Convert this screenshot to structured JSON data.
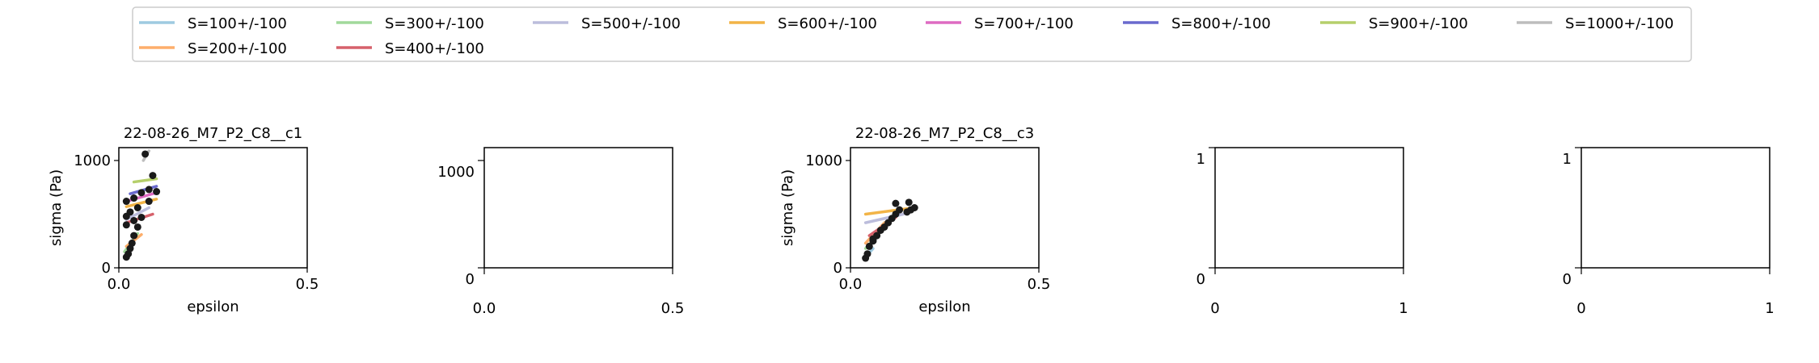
{
  "legend": {
    "placement": "top-center",
    "entries": [
      {
        "label": "S=100+/-100",
        "color": "#9ecae1"
      },
      {
        "label": "S=300+/-100",
        "color": "#a1d99b"
      },
      {
        "label": "S=500+/-100",
        "color": "#bcbddc"
      },
      {
        "label": "S=600+/-100",
        "color": "#f2b447"
      },
      {
        "label": "S=700+/-100",
        "color": "#de6bc2"
      },
      {
        "label": "S=800+/-100",
        "color": "#6a6acd"
      },
      {
        "label": "S=900+/-100",
        "color": "#b5cf6b"
      },
      {
        "label": "S=1000+/-100",
        "color": "#bdbdbd"
      },
      {
        "label": "S=200+/-100",
        "color": "#fdae6b"
      },
      {
        "label": "S=400+/-100",
        "color": "#d6616b"
      }
    ]
  },
  "chart_data": [
    {
      "type": "scatter",
      "title": "22-08-26_M7_P2_C8__c1",
      "xlabel": "epsilon",
      "ylabel": "sigma (Pa)",
      "xlim": [
        0,
        0.5
      ],
      "ylim": [
        0,
        1120
      ],
      "xticks": [
        {
          "v": 0,
          "label": "0.0"
        },
        {
          "v": 0.5,
          "label": "0.5"
        }
      ],
      "yticks": [
        {
          "v": 0,
          "label": "0"
        },
        {
          "v": 1000,
          "label": "1000"
        }
      ],
      "points": [
        [
          0.02,
          100
        ],
        [
          0.025,
          130
        ],
        [
          0.03,
          180
        ],
        [
          0.035,
          230
        ],
        [
          0.04,
          300
        ],
        [
          0.02,
          480
        ],
        [
          0.03,
          520
        ],
        [
          0.05,
          560
        ],
        [
          0.02,
          620
        ],
        [
          0.04,
          650
        ],
        [
          0.06,
          700
        ],
        [
          0.08,
          730
        ],
        [
          0.09,
          860
        ],
        [
          0.07,
          1060
        ],
        [
          0.02,
          400
        ],
        [
          0.04,
          440
        ],
        [
          0.06,
          470
        ],
        [
          0.08,
          620
        ],
        [
          0.1,
          710
        ],
        [
          0.05,
          380
        ]
      ],
      "fits": [
        {
          "series": "S=100+/-100",
          "x": [
            0.015,
            0.035
          ],
          "y": [
            90,
            190
          ]
        },
        {
          "series": "S=300+/-100",
          "x": [
            0.015,
            0.05
          ],
          "y": [
            150,
            320
          ]
        },
        {
          "series": "S=200+/-100",
          "x": [
            0.02,
            0.06
          ],
          "y": [
            200,
            310
          ]
        },
        {
          "series": "S=400+/-100",
          "x": [
            0.02,
            0.09
          ],
          "y": [
            420,
            500
          ]
        },
        {
          "series": "S=500+/-100",
          "x": [
            0.02,
            0.08
          ],
          "y": [
            450,
            560
          ]
        },
        {
          "series": "S=600+/-100",
          "x": [
            0.02,
            0.1
          ],
          "y": [
            570,
            640
          ]
        },
        {
          "series": "S=700+/-100",
          "x": [
            0.02,
            0.1
          ],
          "y": [
            620,
            700
          ]
        },
        {
          "series": "S=800+/-100",
          "x": [
            0.03,
            0.1
          ],
          "y": [
            690,
            760
          ]
        },
        {
          "series": "S=900+/-100",
          "x": [
            0.04,
            0.1
          ],
          "y": [
            800,
            830
          ]
        },
        {
          "series": "S=1000+/-100",
          "x": [
            0.065,
            0.08
          ],
          "y": [
            1000,
            1090
          ]
        }
      ]
    },
    {
      "type": "scatter",
      "title": "",
      "xlabel": "",
      "ylabel": "",
      "xlim": [
        0,
        0.5
      ],
      "ylim": [
        0,
        1120
      ],
      "xticks": [
        {
          "v": 0,
          "label": "0.0"
        },
        {
          "v": 0.5,
          "label": "0.5"
        }
      ],
      "yticks": [
        {
          "v": 0,
          "label": "0"
        },
        {
          "v": 1000,
          "label": "1000"
        }
      ],
      "points": [],
      "fits": []
    },
    {
      "type": "scatter",
      "title": "22-08-26_M7_P2_C8__c3",
      "xlabel": "epsilon",
      "ylabel": "sigma (Pa)",
      "xlim": [
        0,
        0.5
      ],
      "ylim": [
        0,
        1120
      ],
      "xticks": [
        {
          "v": 0,
          "label": "0.0"
        },
        {
          "v": 0.5,
          "label": "0.5"
        }
      ],
      "yticks": [
        {
          "v": 0,
          "label": "0"
        },
        {
          "v": 1000,
          "label": "1000"
        }
      ],
      "points": [
        [
          0.04,
          90
        ],
        [
          0.045,
          130
        ],
        [
          0.05,
          200
        ],
        [
          0.06,
          250
        ],
        [
          0.07,
          300
        ],
        [
          0.08,
          350
        ],
        [
          0.09,
          380
        ],
        [
          0.1,
          420
        ],
        [
          0.11,
          460
        ],
        [
          0.12,
          500
        ],
        [
          0.13,
          540
        ],
        [
          0.15,
          520
        ],
        [
          0.16,
          540
        ],
        [
          0.17,
          560
        ],
        [
          0.12,
          600
        ],
        [
          0.155,
          610
        ],
        [
          0.06,
          270
        ]
      ],
      "fits": [
        {
          "series": "S=100+/-100",
          "x": [
            0.04,
            0.06
          ],
          "y": [
            100,
            180
          ]
        },
        {
          "series": "S=300+/-100",
          "x": [
            0.04,
            0.09
          ],
          "y": [
            180,
            380
          ]
        },
        {
          "series": "S=200+/-100",
          "x": [
            0.04,
            0.09
          ],
          "y": [
            230,
            420
          ]
        },
        {
          "series": "S=400+/-100",
          "x": [
            0.05,
            0.12
          ],
          "y": [
            300,
            470
          ]
        },
        {
          "series": "S=500+/-100",
          "x": [
            0.04,
            0.14
          ],
          "y": [
            420,
            500
          ]
        },
        {
          "series": "S=600+/-100",
          "x": [
            0.04,
            0.17
          ],
          "y": [
            500,
            560
          ]
        }
      ]
    },
    {
      "type": "scatter",
      "title": "",
      "xlabel": "",
      "ylabel": "",
      "xlim": [
        0,
        1
      ],
      "ylim": [
        0,
        1
      ],
      "xticks": [
        {
          "v": 0,
          "label": "0"
        },
        {
          "v": 1,
          "label": "1"
        }
      ],
      "yticks": [
        {
          "v": 0,
          "label": "0"
        },
        {
          "v": 1,
          "label": "1"
        }
      ],
      "points": [],
      "fits": []
    },
    {
      "type": "scatter",
      "title": "",
      "xlabel": "",
      "ylabel": "",
      "xlim": [
        0,
        1
      ],
      "ylim": [
        0,
        1
      ],
      "xticks": [
        {
          "v": 0,
          "label": "0"
        },
        {
          "v": 1,
          "label": "1"
        }
      ],
      "yticks": [
        {
          "v": 0,
          "label": "0"
        },
        {
          "v": 1,
          "label": "1"
        }
      ],
      "points": [],
      "fits": []
    }
  ]
}
